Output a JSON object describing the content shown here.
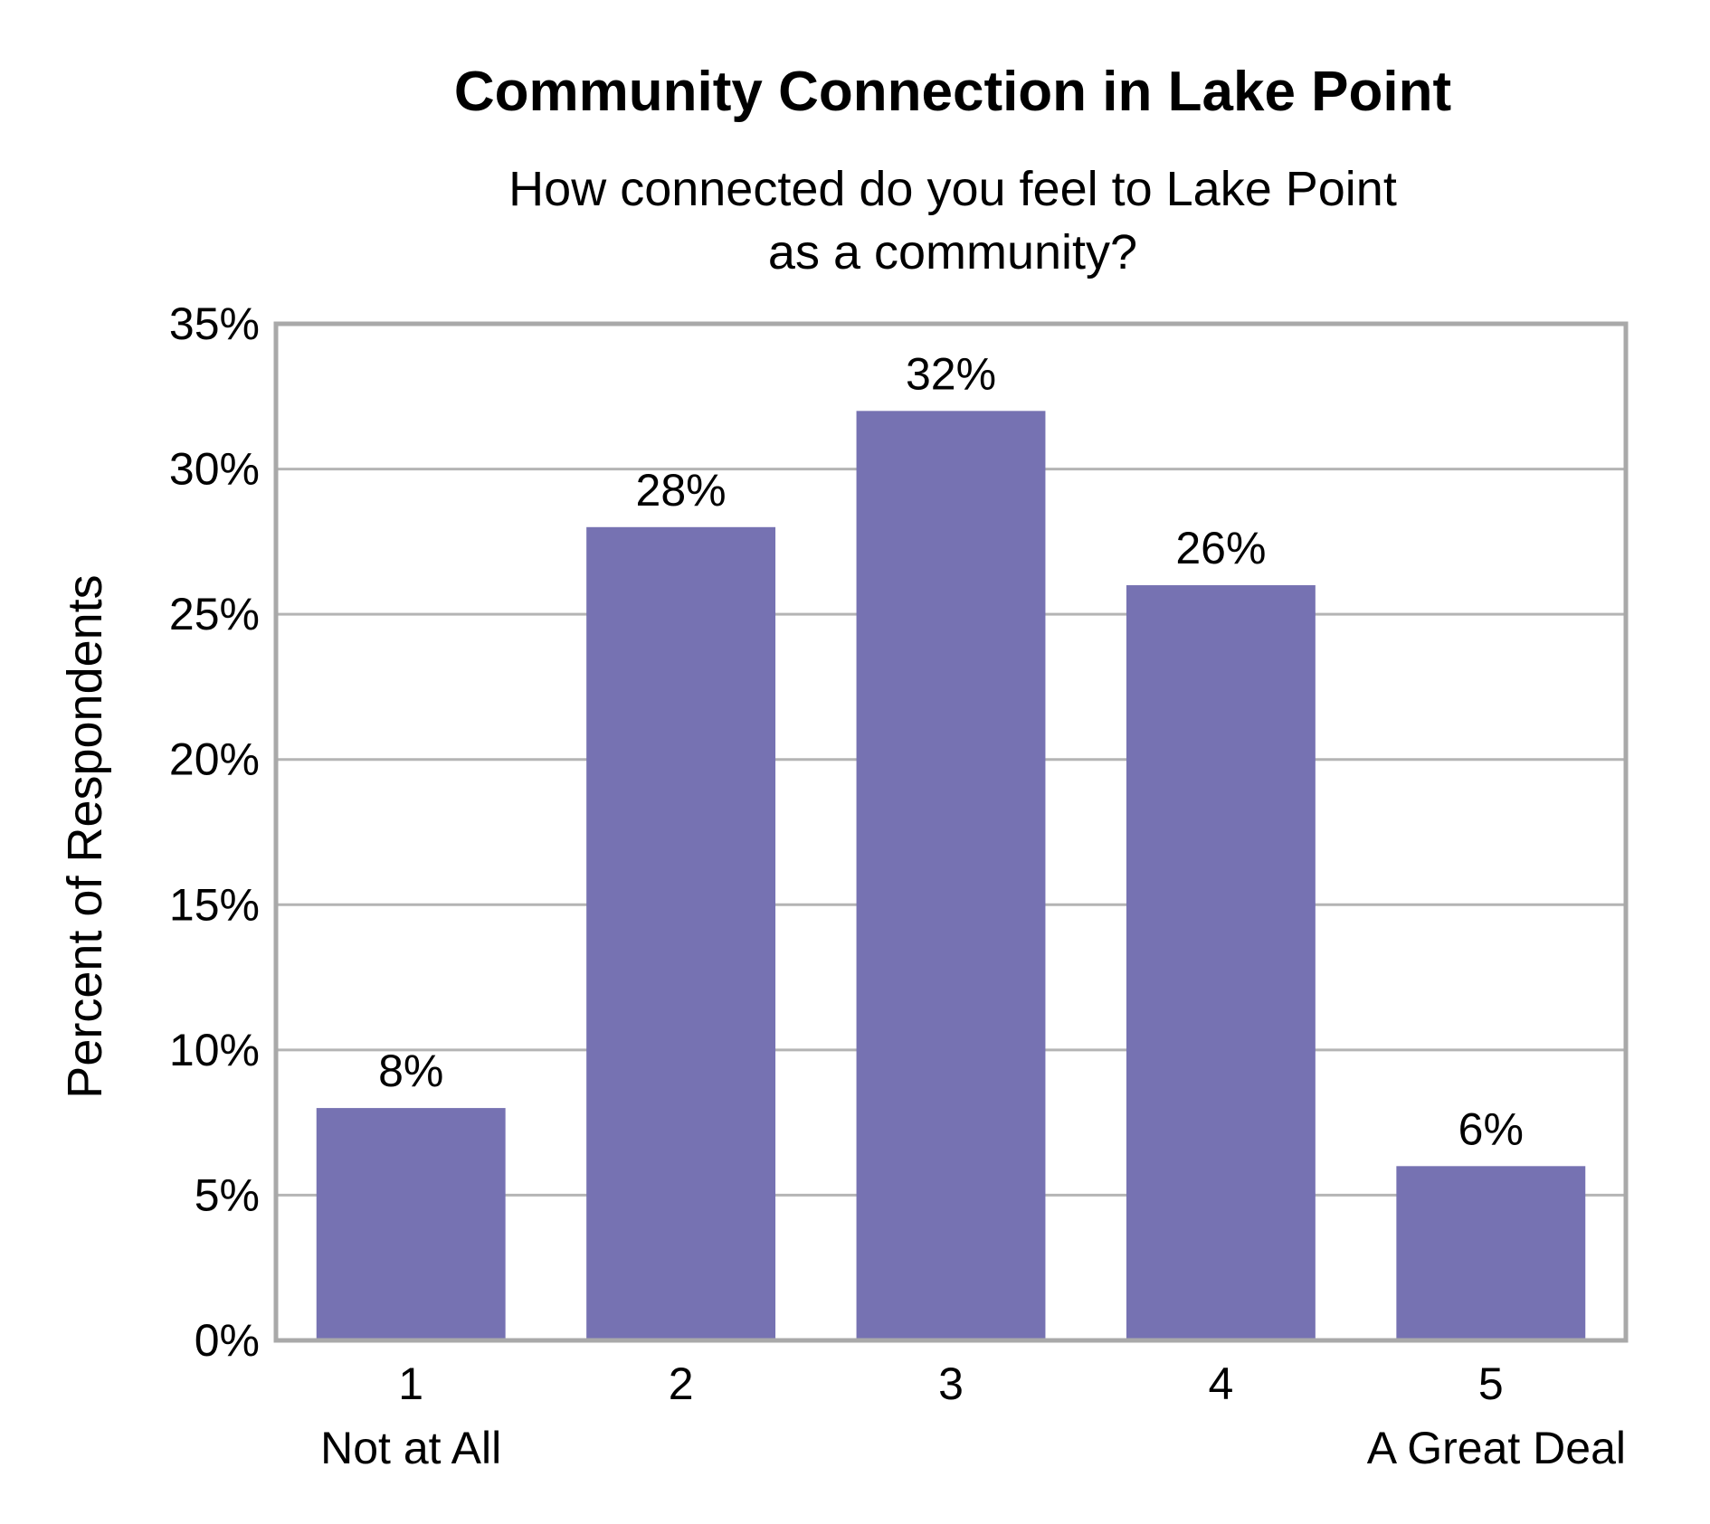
{
  "chart_data": {
    "type": "bar",
    "title": "Community Connection in Lake Point",
    "subtitle_lines": [
      "How connected do you feel to Lake Point",
      "as a community?"
    ],
    "ylabel": "Percent of Respondents",
    "xlabel": "",
    "categories": [
      "1",
      "2",
      "3",
      "4",
      "5"
    ],
    "category_sublabels": [
      "Not at All",
      "",
      "",
      "",
      "A Great Deal"
    ],
    "values": [
      8,
      28,
      32,
      26,
      6
    ],
    "data_labels": [
      "8%",
      "28%",
      "32%",
      "26%",
      "6%"
    ],
    "ylim": [
      0,
      35
    ],
    "yticks": [
      0,
      5,
      10,
      15,
      20,
      25,
      30,
      35
    ],
    "ytick_labels": [
      "0%",
      "5%",
      "10%",
      "15%",
      "20%",
      "25%",
      "30%",
      "35%"
    ],
    "grid": true,
    "legend": "none",
    "colors": {
      "bar": "#7672b2",
      "grid": "#b4b4b4",
      "frame": "#a9a9a9"
    }
  }
}
